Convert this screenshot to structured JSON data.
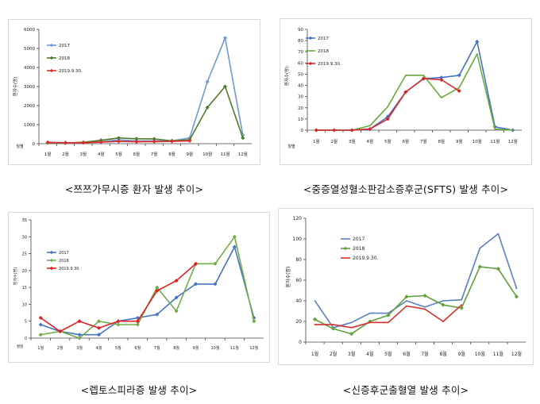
{
  "chart_data": [
    {
      "type": "line",
      "title": "",
      "caption": "<쯔쯔가무시증 환자 발생 추이>",
      "ylabel": "환자수(명)",
      "xlabel": "월별",
      "categories": [
        "1월",
        "2월",
        "3월",
        "4월",
        "5월",
        "6월",
        "7월",
        "8월",
        "9월",
        "10월",
        "11월",
        "12월"
      ],
      "ylim": [
        0,
        6000
      ],
      "yticks": [
        "0",
        "1000",
        "2000",
        "3000",
        "4000",
        "5000",
        "6000"
      ],
      "grid": false,
      "legend": "top-left",
      "series": [
        {
          "name": "2017",
          "color": "#6f99cf",
          "marker": "diamond",
          "values": [
            60,
            40,
            50,
            100,
            200,
            150,
            150,
            150,
            300,
            3250,
            5550,
            450
          ]
        },
        {
          "name": "2018",
          "color": "#4f7a2b",
          "marker": "diamond",
          "values": [
            50,
            40,
            70,
            180,
            300,
            260,
            250,
            150,
            200,
            1900,
            3000,
            300
          ]
        },
        {
          "name": "2019.9.30.",
          "color": "#e02a2a",
          "marker": "diamond",
          "values": [
            70,
            50,
            50,
            80,
            120,
            100,
            110,
            120,
            150,
            null,
            null,
            null
          ]
        }
      ]
    },
    {
      "type": "line",
      "title": "",
      "caption": "<중증열성혈소판감소증후군(SFTS) 발생 추이>",
      "ylabel": "환자수(명)",
      "xlabel": "월별",
      "categories": [
        "1월",
        "2월",
        "3월",
        "4월",
        "5월",
        "6월",
        "7월",
        "8월",
        "9월",
        "10월",
        "11월",
        "12월"
      ],
      "ylim": [
        0,
        90
      ],
      "yticks": [
        "0",
        "10",
        "20",
        "30",
        "40",
        "50",
        "60",
        "70",
        "80",
        "90"
      ],
      "grid": false,
      "legend": "top-left",
      "series": [
        {
          "name": "2017",
          "color": "#4472c4",
          "marker": "diamond",
          "values": [
            0,
            0,
            0,
            1,
            12,
            34,
            46,
            47,
            49,
            79,
            3,
            0
          ]
        },
        {
          "name": "2018",
          "color": "#6aaa3a",
          "marker": "none",
          "values": [
            0,
            0,
            0,
            4,
            21,
            49,
            49,
            29,
            38,
            68,
            1,
            0
          ]
        },
        {
          "name": "2019.9.30.",
          "color": "#d62828",
          "marker": "diamond",
          "values": [
            0,
            0,
            0,
            1,
            10,
            34,
            46,
            45,
            35,
            null,
            null,
            null
          ]
        }
      ]
    },
    {
      "type": "line",
      "title": "",
      "caption": "<렙토스피라증 발생 추이>",
      "ylabel": "환자수(명)",
      "xlabel": "월별",
      "categories": [
        "1월",
        "2월",
        "3월",
        "4월",
        "5월",
        "6월",
        "7월",
        "8월",
        "9월",
        "10월",
        "11월",
        "12월"
      ],
      "ylim": [
        0,
        35
      ],
      "yticks": [
        "0",
        "5",
        "10",
        "15",
        "20",
        "25",
        "30",
        "35"
      ],
      "grid": false,
      "legend": "top-left",
      "series": [
        {
          "name": "2017",
          "color": "#4472c4",
          "marker": "diamond",
          "values": [
            4,
            2,
            1,
            1,
            5,
            6,
            7,
            12,
            16,
            16,
            27,
            6
          ]
        },
        {
          "name": "2018",
          "color": "#70ad47",
          "marker": "diamond",
          "values": [
            1,
            2,
            0,
            5,
            4,
            4,
            15,
            8,
            22,
            22,
            30,
            5
          ]
        },
        {
          "name": "2019.9.30.",
          "color": "#e02020",
          "marker": "diamond",
          "values": [
            6,
            2,
            5,
            3,
            5,
            5,
            14,
            17,
            22,
            null,
            null,
            null
          ]
        }
      ]
    },
    {
      "type": "line",
      "title": "",
      "caption": "<신증후군출혈열 발생 추이>",
      "ylabel": "환자수(명)",
      "xlabel": "",
      "categories": [
        "1월",
        "2월",
        "3월",
        "4월",
        "5월",
        "6월",
        "7월",
        "8월",
        "9월",
        "10월",
        "11월",
        "12월"
      ],
      "ylim": [
        0,
        120
      ],
      "yticks": [
        "0",
        "20",
        "40",
        "60",
        "80",
        "100",
        "120"
      ],
      "grid": false,
      "legend": "top-left",
      "series": [
        {
          "name": "2017",
          "color": "#5b7fbf",
          "marker": "none",
          "values": [
            40,
            14,
            19,
            28,
            28,
            40,
            34,
            40,
            41,
            91,
            105,
            52
          ]
        },
        {
          "name": "2018",
          "color": "#5fa03c",
          "marker": "diamond",
          "values": [
            22,
            13,
            8,
            20,
            26,
            44,
            45,
            36,
            33,
            73,
            71,
            44
          ]
        },
        {
          "name": "2019.9.30.",
          "color": "#d63030",
          "marker": "none",
          "values": [
            17,
            17,
            14,
            19,
            19,
            35,
            32,
            20,
            36,
            null,
            null,
            null
          ]
        }
      ]
    }
  ]
}
